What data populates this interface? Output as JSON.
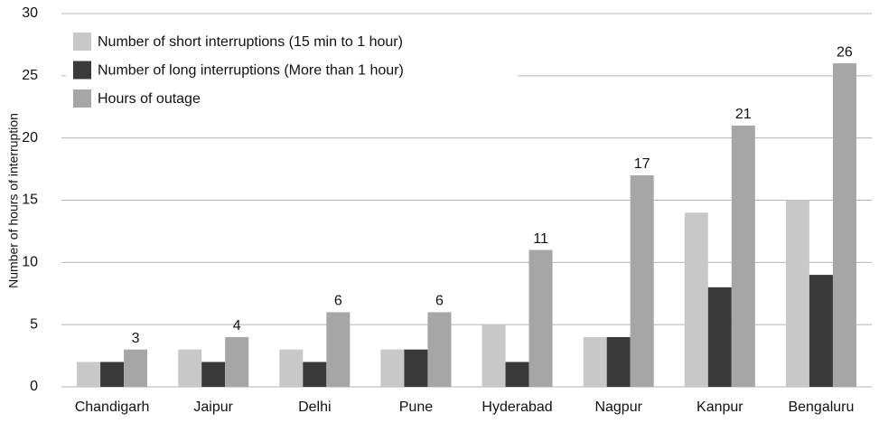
{
  "chart_data": {
    "type": "bar",
    "y_label": "Number of hours of interruption",
    "categories": [
      "Chandigarh",
      "Jaipur",
      "Delhi",
      "Pune",
      "Hyderabad",
      "Nagpur",
      "Kanpur",
      "Bengaluru"
    ],
    "series": [
      {
        "name": "Number of short interruptions (15 min to 1 hour)",
        "color": "#c8c8c8",
        "values": [
          2,
          3,
          3,
          3,
          5,
          4,
          14,
          15
        ]
      },
      {
        "name": "Number of long interruptions (More than 1 hour)",
        "color": "#3a3a3a",
        "values": [
          2,
          2,
          2,
          3,
          2,
          4,
          8,
          9
        ]
      },
      {
        "name": "Hours of outage",
        "color": "#a6a6a6",
        "values": [
          3,
          4,
          6,
          6,
          11,
          17,
          21,
          26
        ],
        "show_values": true
      }
    ],
    "ylim": [
      0,
      30
    ],
    "yticks": [
      0,
      5,
      10,
      15,
      20,
      25,
      30
    ],
    "grid": true,
    "legend": "top-left"
  }
}
